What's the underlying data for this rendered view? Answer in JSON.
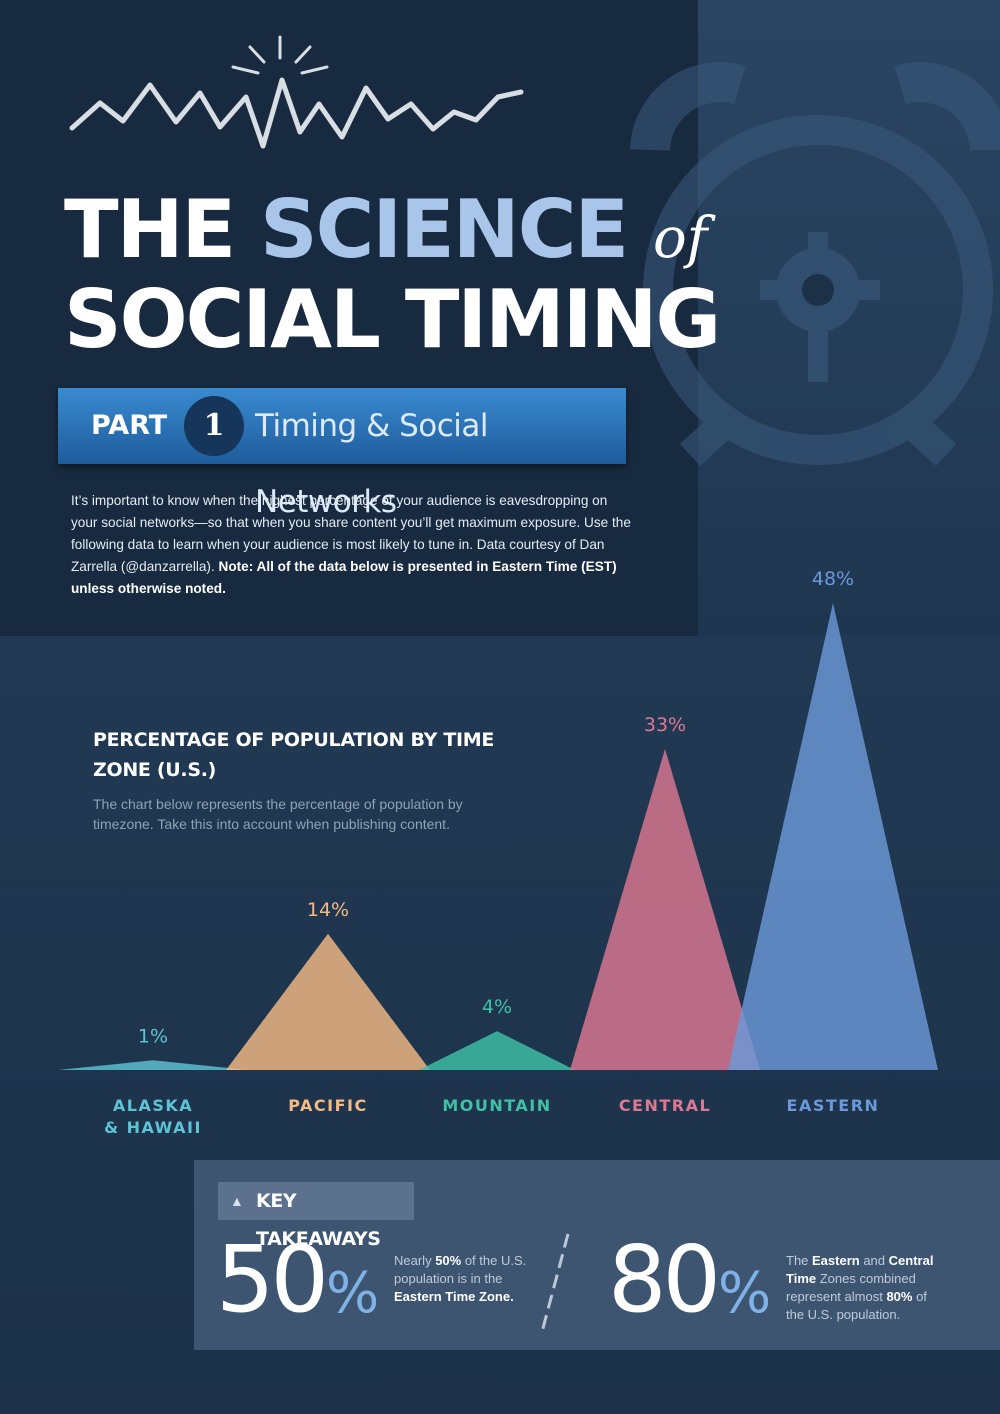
{
  "title": {
    "line1_white": "THE",
    "line1_accent": "SCIENCE",
    "line1_of": "of",
    "line2": "SOCIAL TIMING"
  },
  "part": {
    "label": "PART",
    "number": "1",
    "subtitle": "Timing & Social Networks"
  },
  "intro": {
    "text": "It’s important to know when the highest percentage of your audience is eavesdropping on your social networks—so that when you share content you’ll get maximum exposure. Use the following data to learn when your audience is most likely to tune in. Data courtesy of Dan Zarrella (@danzarrella).",
    "note_bold": "Note: All of the data below is presented in Eastern Time (EST) unless otherwise noted."
  },
  "chart_data": {
    "type": "area",
    "title": "PERCENTAGE OF POPULATION BY TIME ZONE (U.S.)",
    "description": "The chart below represents the percentage of population by timezone. Take this into account when publishing content.",
    "categories": [
      "ALASKA & HAWAII",
      "PACIFIC",
      "MOUNTAIN",
      "CENTRAL",
      "EASTERN"
    ],
    "values": [
      1,
      14,
      4,
      33,
      48
    ],
    "labels": [
      "1%",
      "14%",
      "4%",
      "33%",
      "48%"
    ],
    "colors": [
      "#5ec3d2",
      "#f4ba84",
      "#3fc1a6",
      "#dd7891",
      "#6b98d8"
    ],
    "ylim": [
      0,
      48
    ],
    "grid": false,
    "legend": "none"
  },
  "takeaways": {
    "label": "KEY TAKEAWAYS",
    "items": [
      {
        "number": "50",
        "unit": "%",
        "t1": "Nearly ",
        "b1": "50%",
        "t2": " of the U.S. population is in the ",
        "b2": "Eastern Time Zone.",
        "t3": ""
      },
      {
        "number": "80",
        "unit": "%",
        "t1": "The ",
        "b1": "Eastern",
        "t2": " and ",
        "b2": "Central Time",
        "t3": " Zones combined represent almost ",
        "b3": "80%",
        "t4": " of the U.S. population."
      }
    ]
  }
}
